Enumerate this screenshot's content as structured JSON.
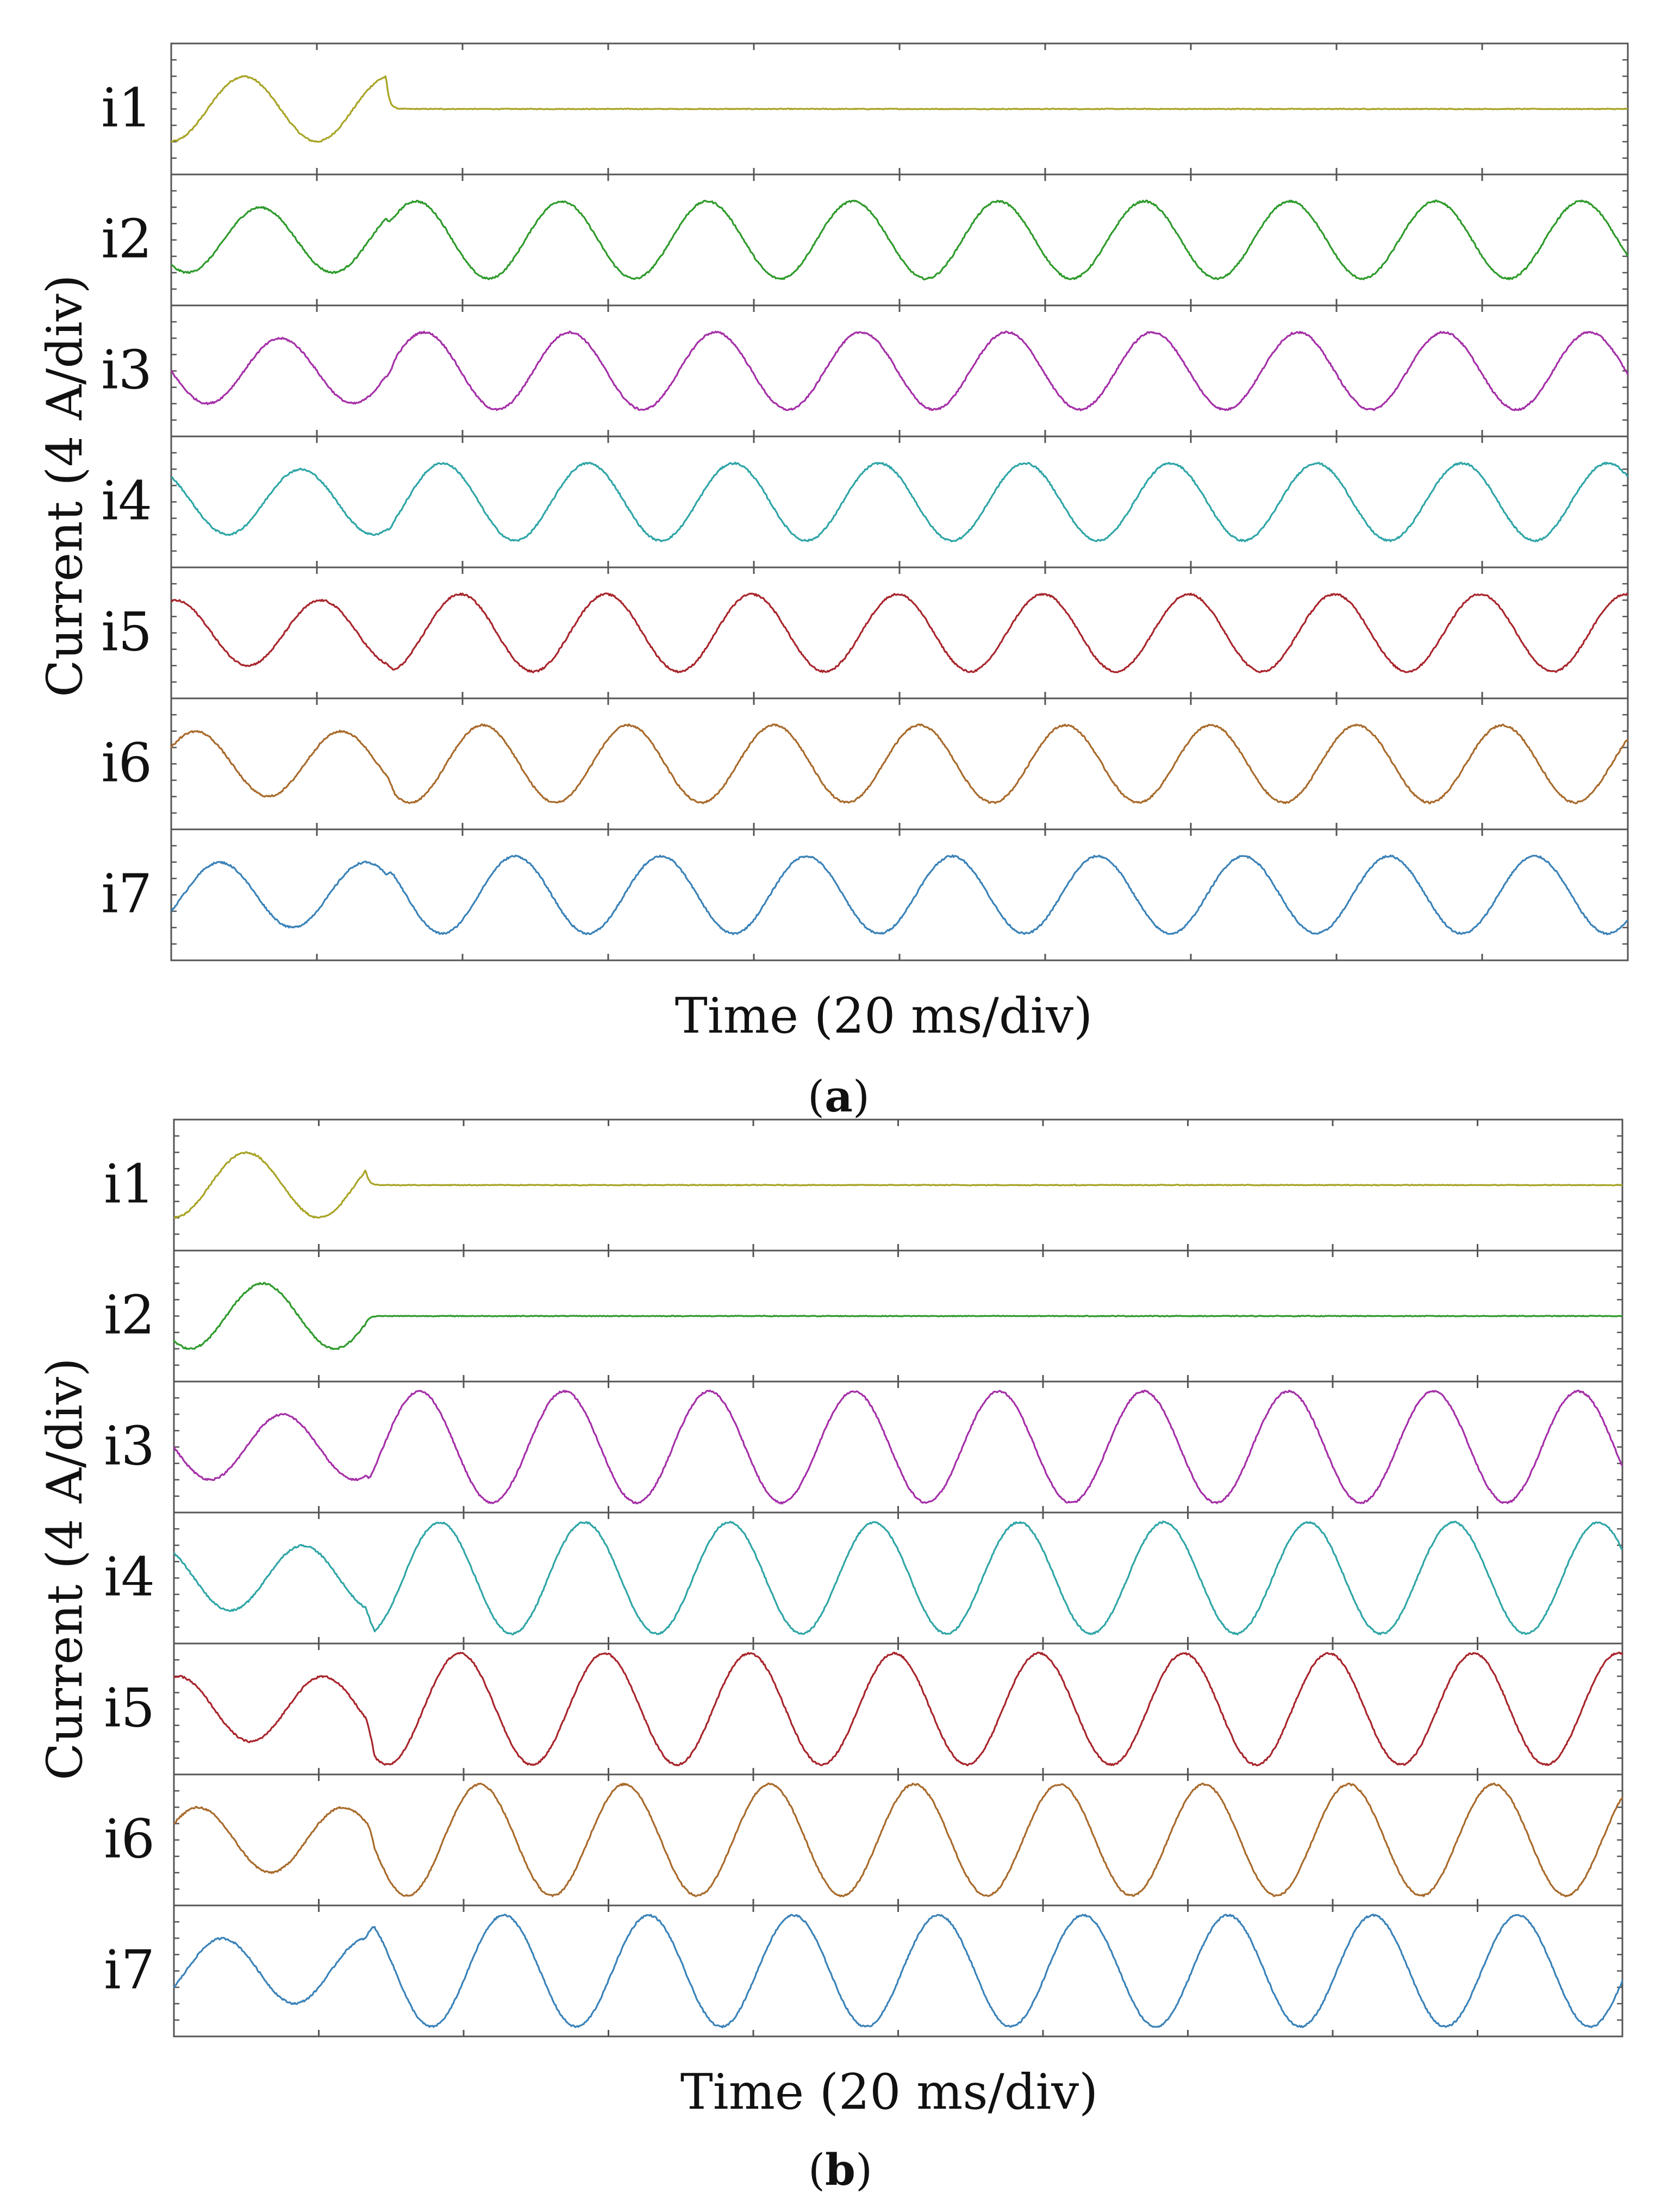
{
  "figure": {
    "ylabel": "Current (4 A/div)",
    "xlabel": "Time (20 ms/div)"
  },
  "colors": {
    "i1": "#a8a426",
    "i2": "#2e9a2b",
    "i3": "#a42fa7",
    "i4": "#2fa5a6",
    "i5": "#a8252c",
    "i6": "#a86a2b",
    "i7": "#3a82b8",
    "frame": "#555555"
  },
  "chart_data": [
    {
      "type": "line",
      "panel": "a",
      "caption_letter": "a",
      "xlabel": "Time (20 ms/div)",
      "ylabel": "Current (4 A/div)",
      "x_range_ms": [
        0,
        200
      ],
      "x_divisions": 10,
      "fault_time_ms": 29.5,
      "series": [
        {
          "name": "i1",
          "amplitude_A": 2.1,
          "frequency_Hz": 50,
          "phase_deg": -90,
          "post_fault_amplitude_A": 0.0,
          "post_fault_phase_shift_deg": 0
        },
        {
          "name": "i2",
          "amplitude_A": 2.1,
          "frequency_Hz": 50,
          "phase_deg": -130,
          "post_fault_amplitude_A": 2.5,
          "post_fault_phase_shift_deg": -25
        },
        {
          "name": "i3",
          "amplitude_A": 2.1,
          "frequency_Hz": 50,
          "phase_deg": -180,
          "post_fault_amplitude_A": 2.5,
          "post_fault_phase_shift_deg": 5
        },
        {
          "name": "i4",
          "amplitude_A": 2.1,
          "frequency_Hz": 50,
          "phase_deg": 130,
          "post_fault_amplitude_A": 2.5,
          "post_fault_phase_shift_deg": 10
        },
        {
          "name": "i5",
          "amplitude_A": 2.1,
          "frequency_Hz": 50,
          "phase_deg": 80,
          "post_fault_amplitude_A": 2.5,
          "post_fault_phase_shift_deg": 15
        },
        {
          "name": "i6",
          "amplitude_A": 2.1,
          "frequency_Hz": 50,
          "phase_deg": 30,
          "post_fault_amplitude_A": 2.5,
          "post_fault_phase_shift_deg": 10
        },
        {
          "name": "i7",
          "amplitude_A": 2.1,
          "frequency_Hz": 50,
          "phase_deg": -30,
          "post_fault_amplitude_A": 2.5,
          "post_fault_phase_shift_deg": -10
        }
      ]
    },
    {
      "type": "line",
      "panel": "b",
      "caption_letter": "b",
      "xlabel": "Time (20 ms/div)",
      "ylabel": "Current (4 A/div)",
      "x_range_ms": [
        0,
        200
      ],
      "x_divisions": 10,
      "fault_time_ms": 26.5,
      "series": [
        {
          "name": "i1",
          "amplitude_A": 2.1,
          "frequency_Hz": 50,
          "phase_deg": -90,
          "post_fault_amplitude_A": 0.0,
          "post_fault_phase_shift_deg": 0
        },
        {
          "name": "i2",
          "amplitude_A": 2.1,
          "frequency_Hz": 50,
          "phase_deg": -130,
          "post_fault_amplitude_A": 0.0,
          "post_fault_phase_shift_deg": 0
        },
        {
          "name": "i3",
          "amplitude_A": 2.1,
          "frequency_Hz": 50,
          "phase_deg": -180,
          "post_fault_amplitude_A": 3.6,
          "post_fault_phase_shift_deg": 20
        },
        {
          "name": "i4",
          "amplitude_A": 2.1,
          "frequency_Hz": 50,
          "phase_deg": 130,
          "post_fault_amplitude_A": 3.6,
          "post_fault_phase_shift_deg": 20
        },
        {
          "name": "i5",
          "amplitude_A": 2.1,
          "frequency_Hz": 50,
          "phase_deg": 80,
          "post_fault_amplitude_A": 3.6,
          "post_fault_phase_shift_deg": 20
        },
        {
          "name": "i6",
          "amplitude_A": 2.1,
          "frequency_Hz": 50,
          "phase_deg": 30,
          "post_fault_amplitude_A": 3.6,
          "post_fault_phase_shift_deg": 20
        },
        {
          "name": "i7",
          "amplitude_A": 2.1,
          "frequency_Hz": 50,
          "phase_deg": -30,
          "post_fault_amplitude_A": 3.6,
          "post_fault_phase_shift_deg": 20
        }
      ]
    }
  ]
}
